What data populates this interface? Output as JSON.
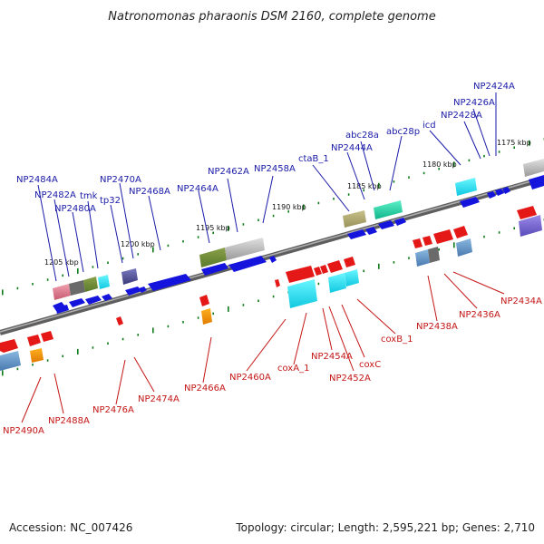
{
  "title": "Natronomonas pharaonis DSM 2160, complete genome",
  "footer": {
    "accession": "Accession: NC_007426",
    "topology": "Topology: circular; Length: 2,595,221 bp; Genes: 2,710"
  },
  "colors": {
    "forward": "#1414dd",
    "reverse": "#e51818",
    "axis": "#7a7a7a",
    "tick": "#0d7a1a",
    "blue_label": "#1a1aa8",
    "red_label": "#c41616"
  },
  "scale_labels": [
    "1175 kbp",
    "1180 kbp",
    "1185 kbp",
    "1190 kbp",
    "1195 kbp",
    "1200 kbp",
    "1205 kbp"
  ],
  "upper_labels": [
    "NP2424A",
    "NP2426A",
    "NP2428A",
    "icd",
    "abc28p",
    "abc28a",
    "NP2444A",
    "ctaB_1",
    "NP2458A",
    "NP2462A",
    "NP2464A",
    "NP2468A",
    "NP2470A",
    "tp32",
    "tmk",
    "NP2480A",
    "NP2482A",
    "NP2484A"
  ],
  "lower_labels": [
    "NP2434A",
    "NP2436A",
    "NP2438A",
    "coxB_1",
    "coxC",
    "NP2452A",
    "NP2454A",
    "coxA_1",
    "NP2460A",
    "NP2466A",
    "NP2474A",
    "NP2476A",
    "NP2488A",
    "NP2490A"
  ]
}
